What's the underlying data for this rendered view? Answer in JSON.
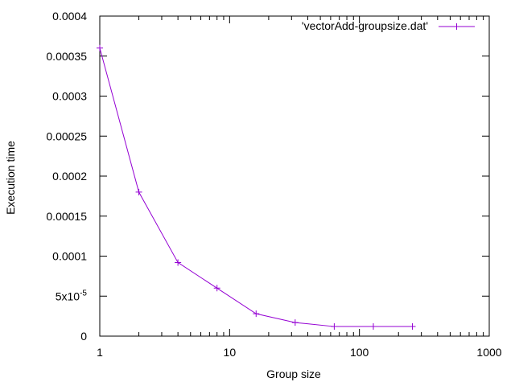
{
  "chart_data": {
    "type": "line",
    "xlabel": "Group size",
    "ylabel": "Execution time",
    "x_scale": "log",
    "xlim": [
      1,
      1000
    ],
    "ylim": [
      0,
      0.0004
    ],
    "grid": false,
    "legend_position": "top-right",
    "x_ticks": [
      {
        "value": 1,
        "label": "1"
      },
      {
        "value": 10,
        "label": "10"
      },
      {
        "value": 100,
        "label": "100"
      },
      {
        "value": 1000,
        "label": "1000"
      }
    ],
    "y_ticks": [
      {
        "value": 0,
        "label": "0"
      },
      {
        "value": 5e-05,
        "label": "5x10",
        "exponent": "-5"
      },
      {
        "value": 0.0001,
        "label": "0.0001"
      },
      {
        "value": 0.00015,
        "label": "0.00015"
      },
      {
        "value": 0.0002,
        "label": "0.0002"
      },
      {
        "value": 0.00025,
        "label": "0.00025"
      },
      {
        "value": 0.0003,
        "label": "0.0003"
      },
      {
        "value": 0.00035,
        "label": "0.00035"
      },
      {
        "value": 0.0004,
        "label": "0.0004"
      }
    ],
    "series": [
      {
        "name": "'vectorAdd-groupsize.dat'",
        "color": "#9400d3",
        "marker": "plus",
        "x": [
          1,
          2,
          4,
          8,
          16,
          32,
          64,
          128,
          256
        ],
        "y": [
          0.00036,
          0.00018,
          9.2e-05,
          6e-05,
          2.8e-05,
          1.7e-05,
          1.2e-05,
          1.2e-05,
          1.2e-05
        ]
      }
    ]
  }
}
